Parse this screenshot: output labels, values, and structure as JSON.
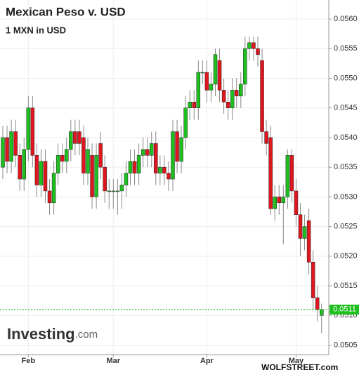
{
  "chart_data": {
    "type": "candlestick",
    "title": "Mexican Peso v. USD",
    "subtitle": "1 MXN in USD",
    "categories": [
      null,
      null,
      null,
      null,
      null,
      null,
      "Feb",
      null,
      null,
      null,
      null,
      null,
      null,
      null,
      null,
      null,
      null,
      null,
      null,
      null,
      null,
      null,
      null,
      null,
      null,
      null,
      "Mar",
      null,
      null,
      null,
      null,
      null,
      null,
      null,
      null,
      null,
      null,
      null,
      null,
      null,
      null,
      null,
      null,
      null,
      null,
      null,
      null,
      null,
      "Apr",
      null,
      null,
      null,
      null,
      null,
      null,
      null,
      null,
      null,
      null,
      null,
      null,
      null,
      null,
      null,
      null,
      null,
      null,
      null,
      null,
      "May",
      null,
      null,
      null,
      null,
      null,
      null
    ],
    "open": [
      0.0535,
      0.054,
      0.0536,
      0.0541,
      0.0537,
      0.0533,
      0.0538,
      0.0545,
      0.0537,
      0.0532,
      0.0536,
      0.0531,
      0.0529,
      0.0534,
      0.0537,
      0.0536,
      0.0538,
      0.0541,
      0.0541,
      0.054,
      0.0534,
      0.0537,
      0.053,
      0.0539,
      0.0535,
      0.0531,
      0.0531,
      0.0531,
      0.0531,
      0.0532,
      0.0534,
      0.0536,
      0.0534,
      0.0537,
      0.0538,
      0.0537,
      0.0539,
      0.0534,
      0.0535,
      0.0534,
      0.0533,
      0.0541,
      0.0536,
      0.054,
      0.0545,
      0.0546,
      0.0545,
      0.0551,
      0.0551,
      0.0548,
      0.0549,
      0.0553,
      0.0548,
      0.0546,
      0.0545,
      0.0548,
      0.0547,
      0.0549,
      0.0555,
      0.0556,
      0.0555,
      0.0553,
      0.0541,
      0.054,
      0.0528,
      0.053,
      0.0529,
      0.053,
      0.0537,
      0.0531,
      0.0527,
      0.0523,
      0.0526,
      0.0519,
      0.0513,
      0.051
    ],
    "high": [
      0.0542,
      0.0542,
      0.0543,
      0.0543,
      0.0539,
      0.054,
      0.0547,
      0.0547,
      0.0539,
      0.0538,
      0.0538,
      0.0533,
      0.0536,
      0.0539,
      0.0539,
      0.054,
      0.0543,
      0.0543,
      0.0543,
      0.0542,
      0.054,
      0.0539,
      0.0539,
      0.0541,
      0.0537,
      0.0533,
      0.0533,
      0.0533,
      0.0534,
      0.0536,
      0.0538,
      0.0538,
      0.0539,
      0.054,
      0.054,
      0.0541,
      0.0541,
      0.0537,
      0.0537,
      0.0536,
      0.0543,
      0.0543,
      0.0542,
      0.0547,
      0.0548,
      0.0548,
      0.0553,
      0.0553,
      0.0553,
      0.0551,
      0.0555,
      0.0555,
      0.055,
      0.0548,
      0.055,
      0.055,
      0.0551,
      0.0557,
      0.0557,
      0.0557,
      0.0557,
      0.0555,
      0.0543,
      0.0542,
      0.0532,
      0.0532,
      0.0532,
      0.0538,
      0.0538,
      0.0533,
      0.0529,
      0.0527,
      0.0528,
      0.0521,
      0.0515,
      0.0512
    ],
    "low": [
      0.0533,
      0.0534,
      0.0534,
      0.0535,
      0.0531,
      0.0531,
      0.0536,
      0.0535,
      0.053,
      0.053,
      0.0529,
      0.0527,
      0.0527,
      0.0532,
      0.0534,
      0.0534,
      0.0536,
      0.0537,
      0.0537,
      0.0532,
      0.0532,
      0.0528,
      0.0528,
      0.0533,
      0.0529,
      0.0528,
      0.0528,
      0.0527,
      0.0528,
      0.053,
      0.0532,
      0.0532,
      0.0532,
      0.0535,
      0.0535,
      0.0535,
      0.0532,
      0.0532,
      0.0532,
      0.0531,
      0.0531,
      0.0534,
      0.0534,
      0.0538,
      0.0543,
      0.0543,
      0.0543,
      0.0549,
      0.0546,
      0.0546,
      0.0547,
      0.0546,
      0.0544,
      0.0543,
      0.0543,
      0.0545,
      0.0545,
      0.0547,
      0.0553,
      0.0553,
      0.0552,
      0.0539,
      0.0537,
      0.0527,
      0.0526,
      0.0527,
      0.0522,
      0.0528,
      0.0529,
      0.0525,
      0.052,
      0.0521,
      0.0517,
      0.0511,
      0.0509,
      0.0507
    ],
    "close": [
      0.054,
      0.0536,
      0.0541,
      0.0537,
      0.0533,
      0.0538,
      0.0545,
      0.0537,
      0.0532,
      0.0536,
      0.0531,
      0.0529,
      0.0534,
      0.0537,
      0.0536,
      0.0538,
      0.0541,
      0.0539,
      0.0539,
      0.0534,
      0.0538,
      0.053,
      0.0537,
      0.0535,
      0.0531,
      0.0531,
      0.0531,
      0.0531,
      0.0532,
      0.0534,
      0.0536,
      0.0534,
      0.0537,
      0.0538,
      0.0537,
      0.0539,
      0.0534,
      0.0535,
      0.0534,
      0.0533,
      0.0541,
      0.0536,
      0.054,
      0.0545,
      0.0546,
      0.0545,
      0.0551,
      0.0551,
      0.0548,
      0.0549,
      0.0554,
      0.0548,
      0.0546,
      0.0545,
      0.0548,
      0.0547,
      0.0549,
      0.0555,
      0.0556,
      0.0555,
      0.0554,
      0.0541,
      0.0539,
      0.0528,
      0.053,
      0.0529,
      0.053,
      0.0537,
      0.0531,
      0.0527,
      0.0523,
      0.0525,
      0.0519,
      0.0513,
      0.0511,
      0.0511
    ],
    "up_color": "#1fbf1f",
    "down_color": "#e0161e",
    "ylim": [
      0.05034,
      0.05632
    ],
    "yticks": [
      {
        "value": 0.056,
        "label": "0.0560"
      },
      0.0555,
      {
        "value": 0.055,
        "label": "0.0550"
      },
      0.0545,
      {
        "value": 0.054,
        "label": "0.0540"
      },
      0.0535,
      {
        "value": 0.053,
        "label": "0.0530"
      },
      0.0525,
      {
        "value": 0.052,
        "label": "0.0520"
      },
      0.0515,
      {
        "value": 0.051,
        "label": "0.0510"
      },
      0.0505
    ],
    "last_price": 0.0511,
    "last_price_color": "#1fbf1f",
    "grid": true,
    "logo_main": "Investing",
    "logo_suffix": ".com",
    "source": "WOLFSTREET.com"
  }
}
